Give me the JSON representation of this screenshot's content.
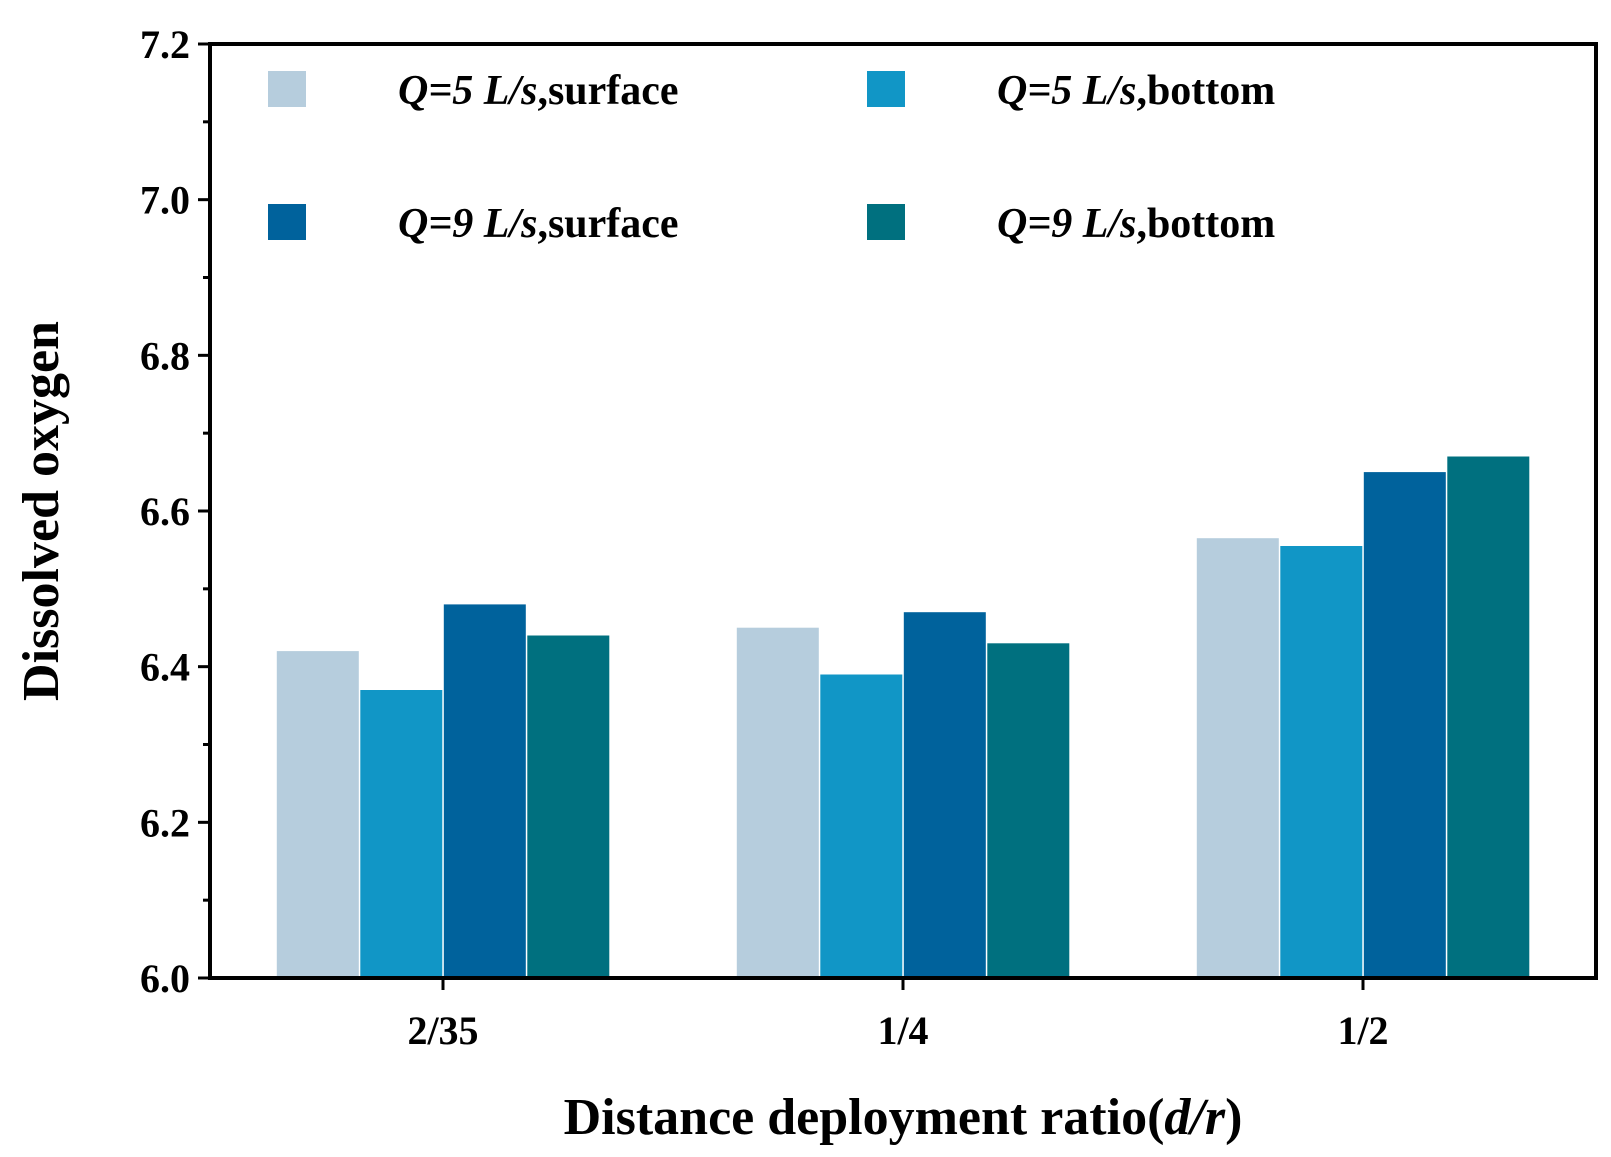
{
  "chart_data": {
    "type": "bar",
    "title": "",
    "xlabel": "Distance deployment ratio(d/r)",
    "xlabel_parts": {
      "prefix": "Distance deployment ratio(",
      "italic": "d/r",
      "suffix": ")"
    },
    "ylabel": "Dissolved oxygen",
    "categories": [
      "2/35",
      "1/4",
      "1/2"
    ],
    "ylim": [
      6.0,
      7.2
    ],
    "yticks": [
      "6.0",
      "6.2",
      "6.4",
      "6.6",
      "6.8",
      "7.0",
      "7.2"
    ],
    "grid": false,
    "legend_position": "top",
    "series": [
      {
        "name": "Q=5 L/s,surface",
        "legend_italic": "Q=5 L/s",
        "legend_rest": ",surface",
        "color": "#b6cddd",
        "values": [
          6.42,
          6.45,
          6.565
        ]
      },
      {
        "name": "Q=5 L/s,bottom",
        "legend_italic": "Q=5 L/s",
        "legend_rest": ",bottom",
        "color": "#1196c6",
        "values": [
          6.37,
          6.39,
          6.555
        ]
      },
      {
        "name": "Q=9 L/s,surface",
        "legend_italic": "Q=9 L/s",
        "legend_rest": ",surface",
        "color": "#00629c",
        "values": [
          6.48,
          6.47,
          6.65
        ]
      },
      {
        "name": "Q=9 L/s,bottom",
        "legend_italic": "Q=9 L/s",
        "legend_rest": ",bottom",
        "color": "#00707f",
        "values": [
          6.44,
          6.43,
          6.67
        ]
      }
    ]
  }
}
